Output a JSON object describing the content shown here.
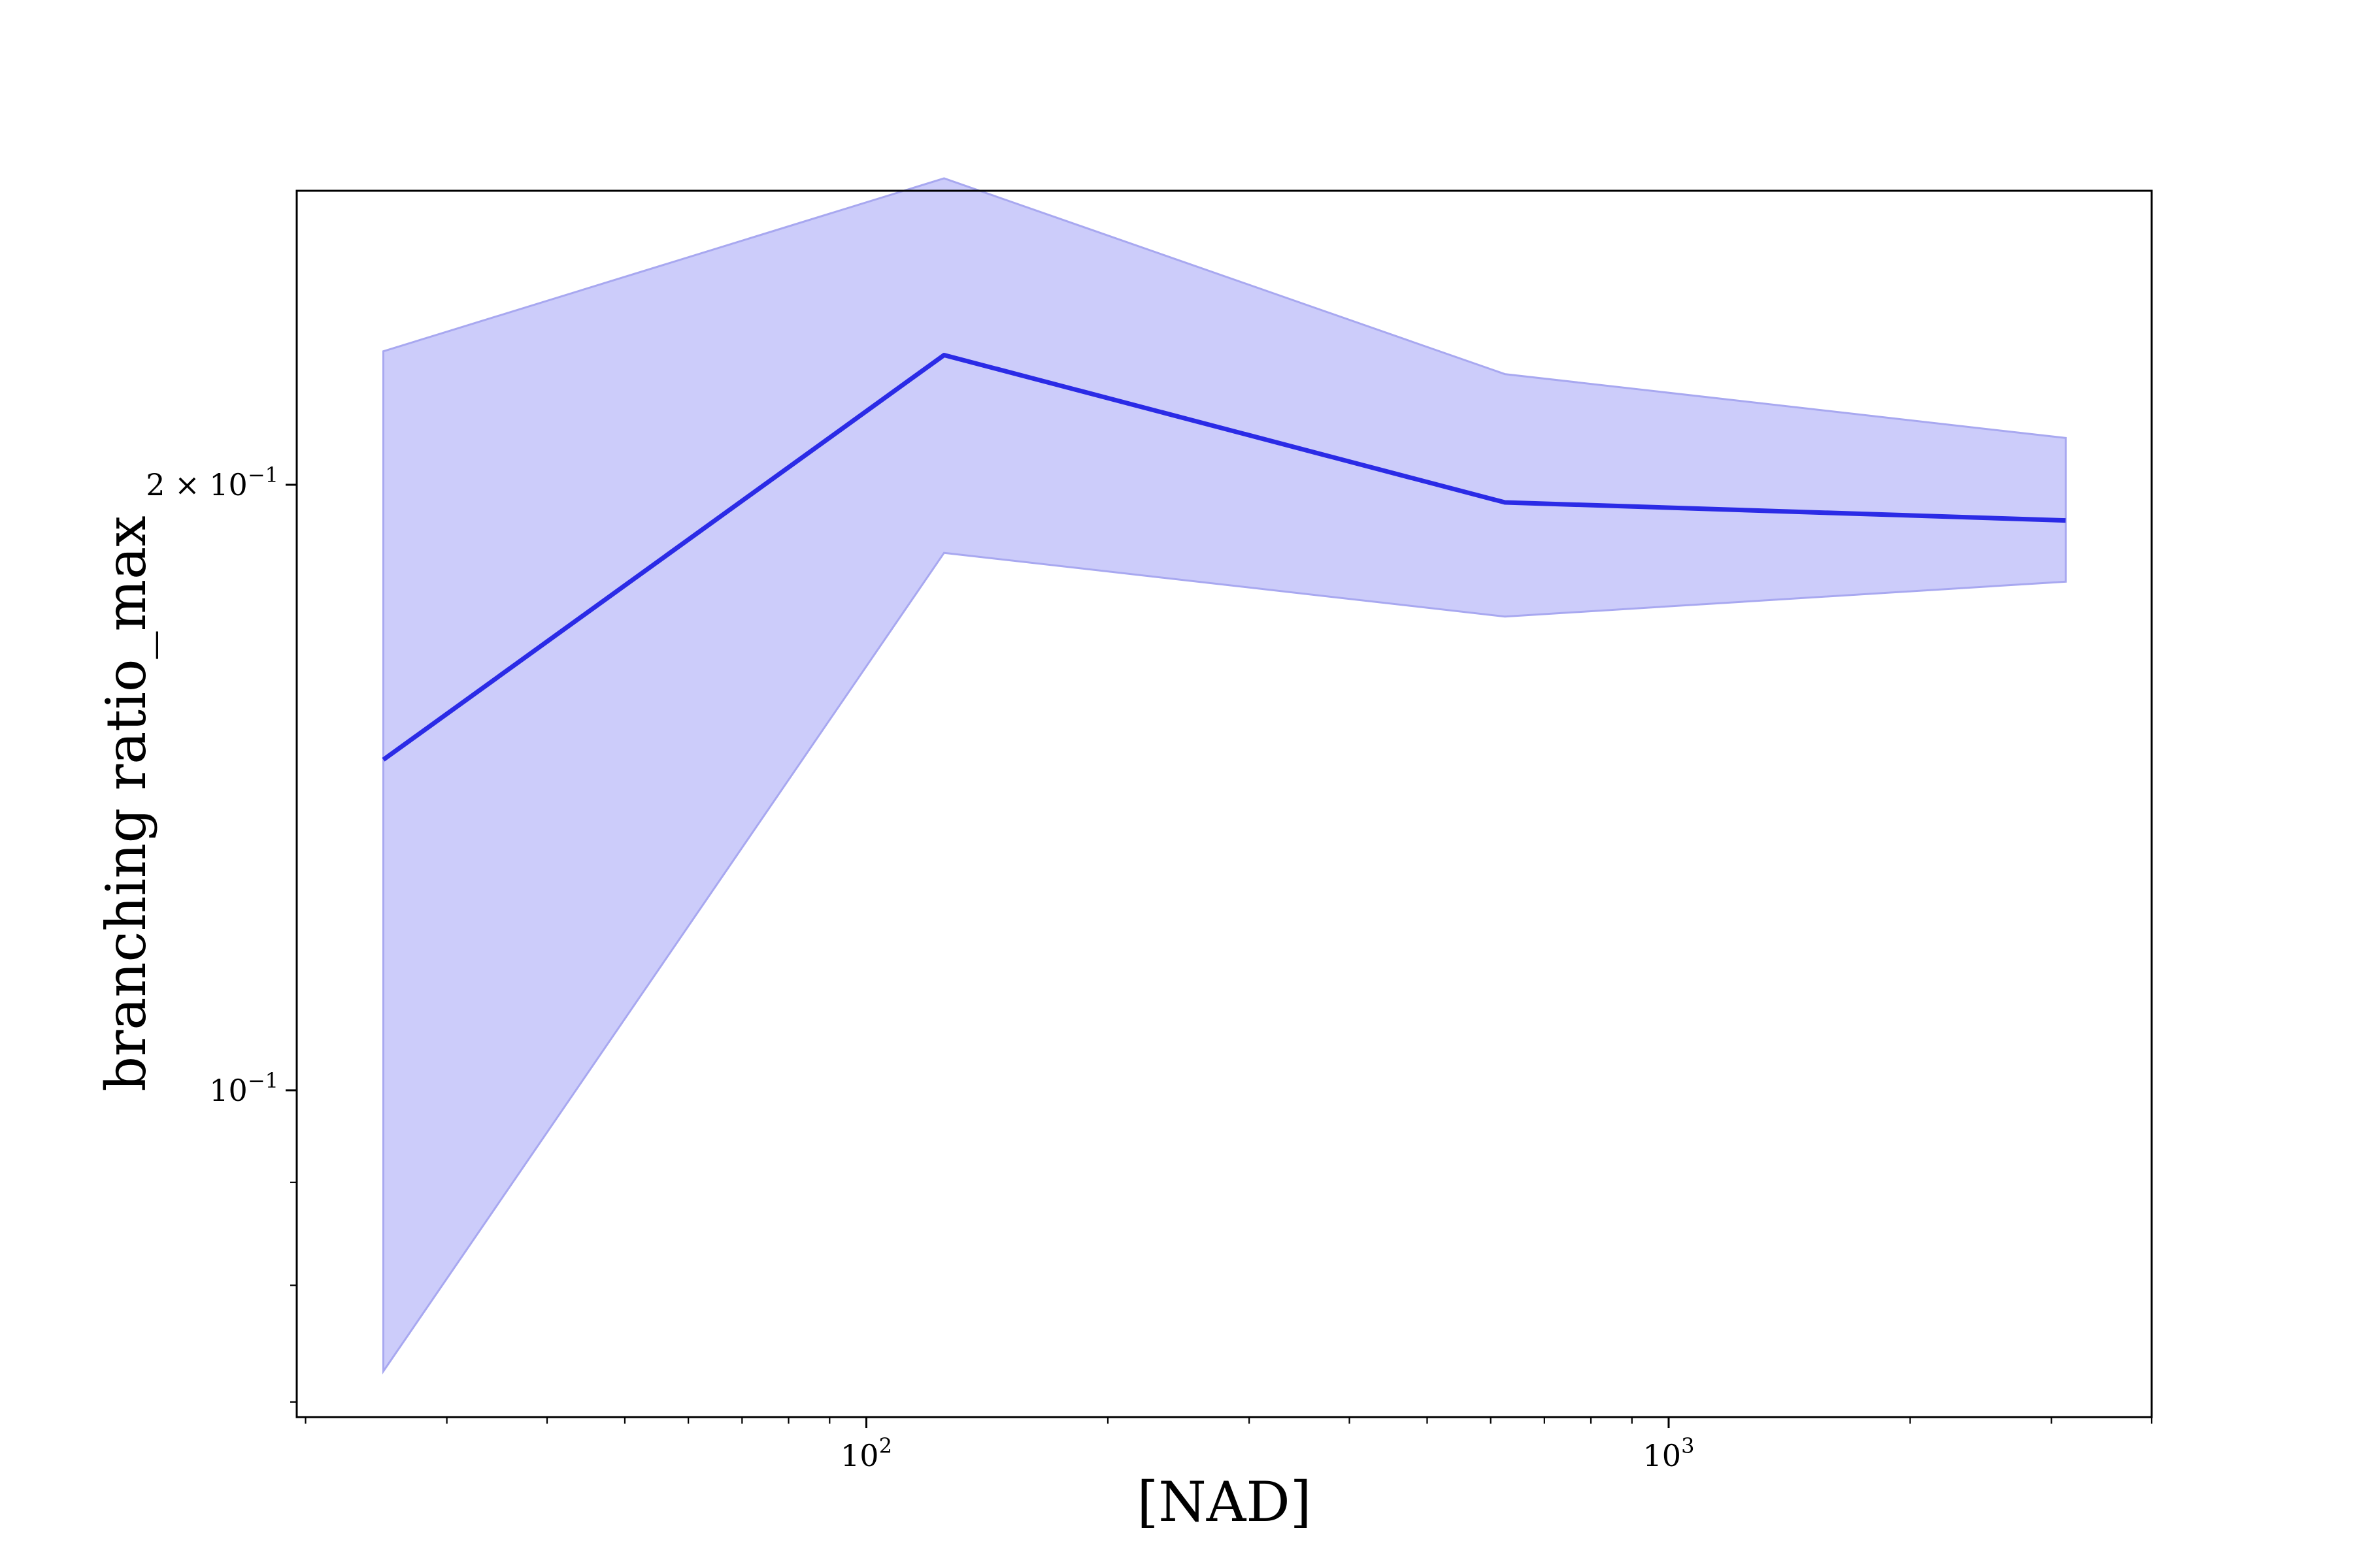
{
  "chart_data": {
    "type": "line",
    "x_scale": "log",
    "y_scale": "log",
    "xlabel": "[NAD]",
    "ylabel": "branching ratio_max",
    "xlim": [
      19.5,
      4000
    ],
    "ylim": [
      0.0688,
      0.28
    ],
    "x_ticks": [
      {
        "value": 100,
        "base": "10",
        "exp": "2"
      },
      {
        "value": 1000,
        "base": "10",
        "exp": "3"
      }
    ],
    "y_ticks": [
      {
        "value": 0.1,
        "prefix": "",
        "base": "10",
        "exp": "−1"
      },
      {
        "value": 0.2,
        "prefix": "2 × ",
        "base": "10",
        "exp": "−1"
      }
    ],
    "y_minor_ticks": [
      0.07,
      0.08,
      0.09,
      0.3
    ],
    "grid": false,
    "series": [
      {
        "color": "#2b2be6",
        "band_color": "#ccccfa",
        "band_edge_color": "#a8a8f0",
        "x": [
          25,
          125,
          625,
          3125
        ],
        "y": [
          0.146,
          0.232,
          0.196,
          0.192
        ],
        "lower": [
          0.0725,
          0.185,
          0.172,
          0.179
        ],
        "upper": [
          0.233,
          0.284,
          0.227,
          0.211
        ]
      }
    ]
  }
}
